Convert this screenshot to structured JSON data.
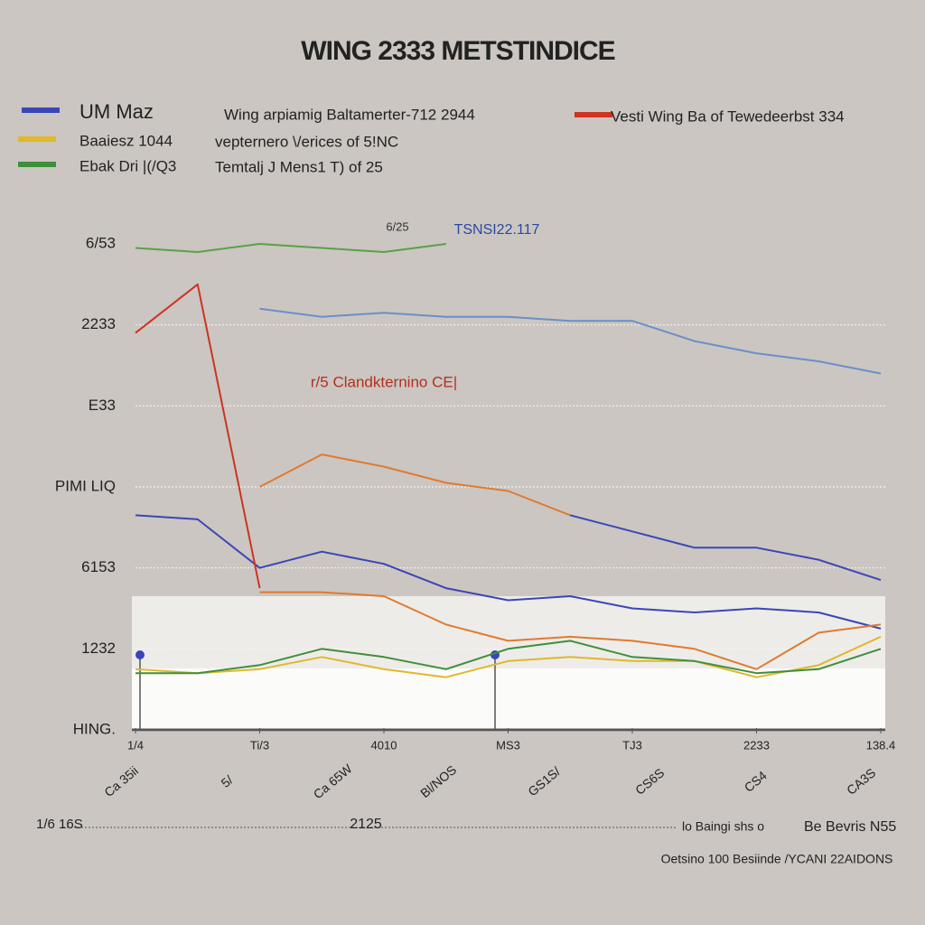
{
  "chart_data": {
    "type": "line",
    "title": "WING 2333 METSTINDICE",
    "legend_texts": [
      "Wing arpiamig Baltamerter-712 2944",
      "vepternero \\/erices of 5!NC",
      "Temtalj J Mens1 T) of 25"
    ],
    "annotations": [
      "6/25",
      "TSNSI22.117",
      "r/5 Clandkternino CE|",
      "1/6 16S",
      "2125",
      "lo Baingi shs o",
      "Be Bevris N55",
      "Oetsino 100 Besiinde /YCANI 22AIDONS"
    ],
    "x_sublabels": [
      "Ca 35ii",
      "5/",
      "Ca 65W",
      "Bl/NOS",
      "GS1S/",
      "CS6S",
      "CS4",
      "CA3S"
    ],
    "x": [
      0,
      1,
      2,
      3,
      4,
      5,
      6,
      7,
      8,
      9,
      10,
      11,
      12
    ],
    "xlim": [
      0,
      12
    ],
    "xticks": [
      {
        "value": 0,
        "label": "1/4"
      },
      {
        "value": 2,
        "label": "Ti/3"
      },
      {
        "value": 4,
        "label": "4010"
      },
      {
        "value": 6,
        "label": "MS3"
      },
      {
        "value": 8,
        "label": "TJ3"
      },
      {
        "value": 10,
        "label": "2233"
      },
      {
        "value": 12,
        "label": "138.4"
      }
    ],
    "ylim": [
      0,
      6
    ],
    "yticks": [
      {
        "value": 6,
        "label": "6/53"
      },
      {
        "value": 5,
        "label": "2233"
      },
      {
        "value": 4,
        "label": "E33"
      },
      {
        "value": 3,
        "label": "PIMI LIQ"
      },
      {
        "value": 2,
        "label": "6153"
      },
      {
        "value": 1,
        "label": "1232"
      },
      {
        "value": 0,
        "label": "HING."
      }
    ],
    "grid": true,
    "series": [
      {
        "name": "UM Maz",
        "color": "#3a46b8",
        "values": [
          2.65,
          2.6,
          2.0,
          2.2,
          2.05,
          1.75,
          1.6,
          1.65,
          1.5,
          1.45,
          1.5,
          1.45,
          1.25
        ]
      },
      {
        "name": "Baaiesz 1044",
        "color": "#e0b828",
        "values": [
          0.75,
          0.7,
          0.75,
          0.9,
          0.75,
          0.65,
          0.85,
          0.9,
          0.85,
          0.85,
          0.65,
          0.8,
          1.15
        ]
      },
      {
        "name": "Ebak Dri |(/Q3",
        "color": "#3f8f3a",
        "values": [
          0.7,
          0.7,
          0.8,
          1.0,
          0.9,
          0.75,
          1.0,
          1.1,
          0.9,
          0.85,
          0.7,
          0.75,
          1.0
        ]
      },
      {
        "name": "Vesti Wing Ba of Tewedeerbst 334",
        "color": "#cc3322",
        "values": [
          4.9,
          5.5,
          1.75,
          null,
          null,
          null,
          null,
          null,
          null,
          null,
          null,
          null,
          null
        ]
      },
      {
        "color": "#e07a30",
        "values": [
          null,
          null,
          1.7,
          1.7,
          1.65,
          1.3,
          1.1,
          1.15,
          1.1,
          1.0,
          0.75,
          1.2,
          1.3
        ]
      },
      {
        "color": "#e07a30",
        "values": [
          null,
          null,
          3.0,
          3.4,
          3.25,
          3.05,
          2.95,
          2.65,
          null,
          null,
          null,
          null,
          null
        ]
      },
      {
        "color": "#3a46b8",
        "values": [
          null,
          null,
          null,
          null,
          null,
          null,
          null,
          2.65,
          2.45,
          2.25,
          2.25,
          2.1,
          1.85
        ]
      },
      {
        "color": "#6c8fc8",
        "values": [
          null,
          null,
          5.2,
          5.1,
          5.15,
          5.1,
          5.1,
          5.05,
          5.05,
          4.8,
          4.65,
          4.55,
          4.4
        ]
      },
      {
        "color": "#5aa04a",
        "values": [
          5.95,
          5.9,
          6.0,
          5.95,
          5.9,
          6.0,
          null,
          null,
          null,
          null,
          null,
          null,
          null
        ]
      }
    ]
  }
}
